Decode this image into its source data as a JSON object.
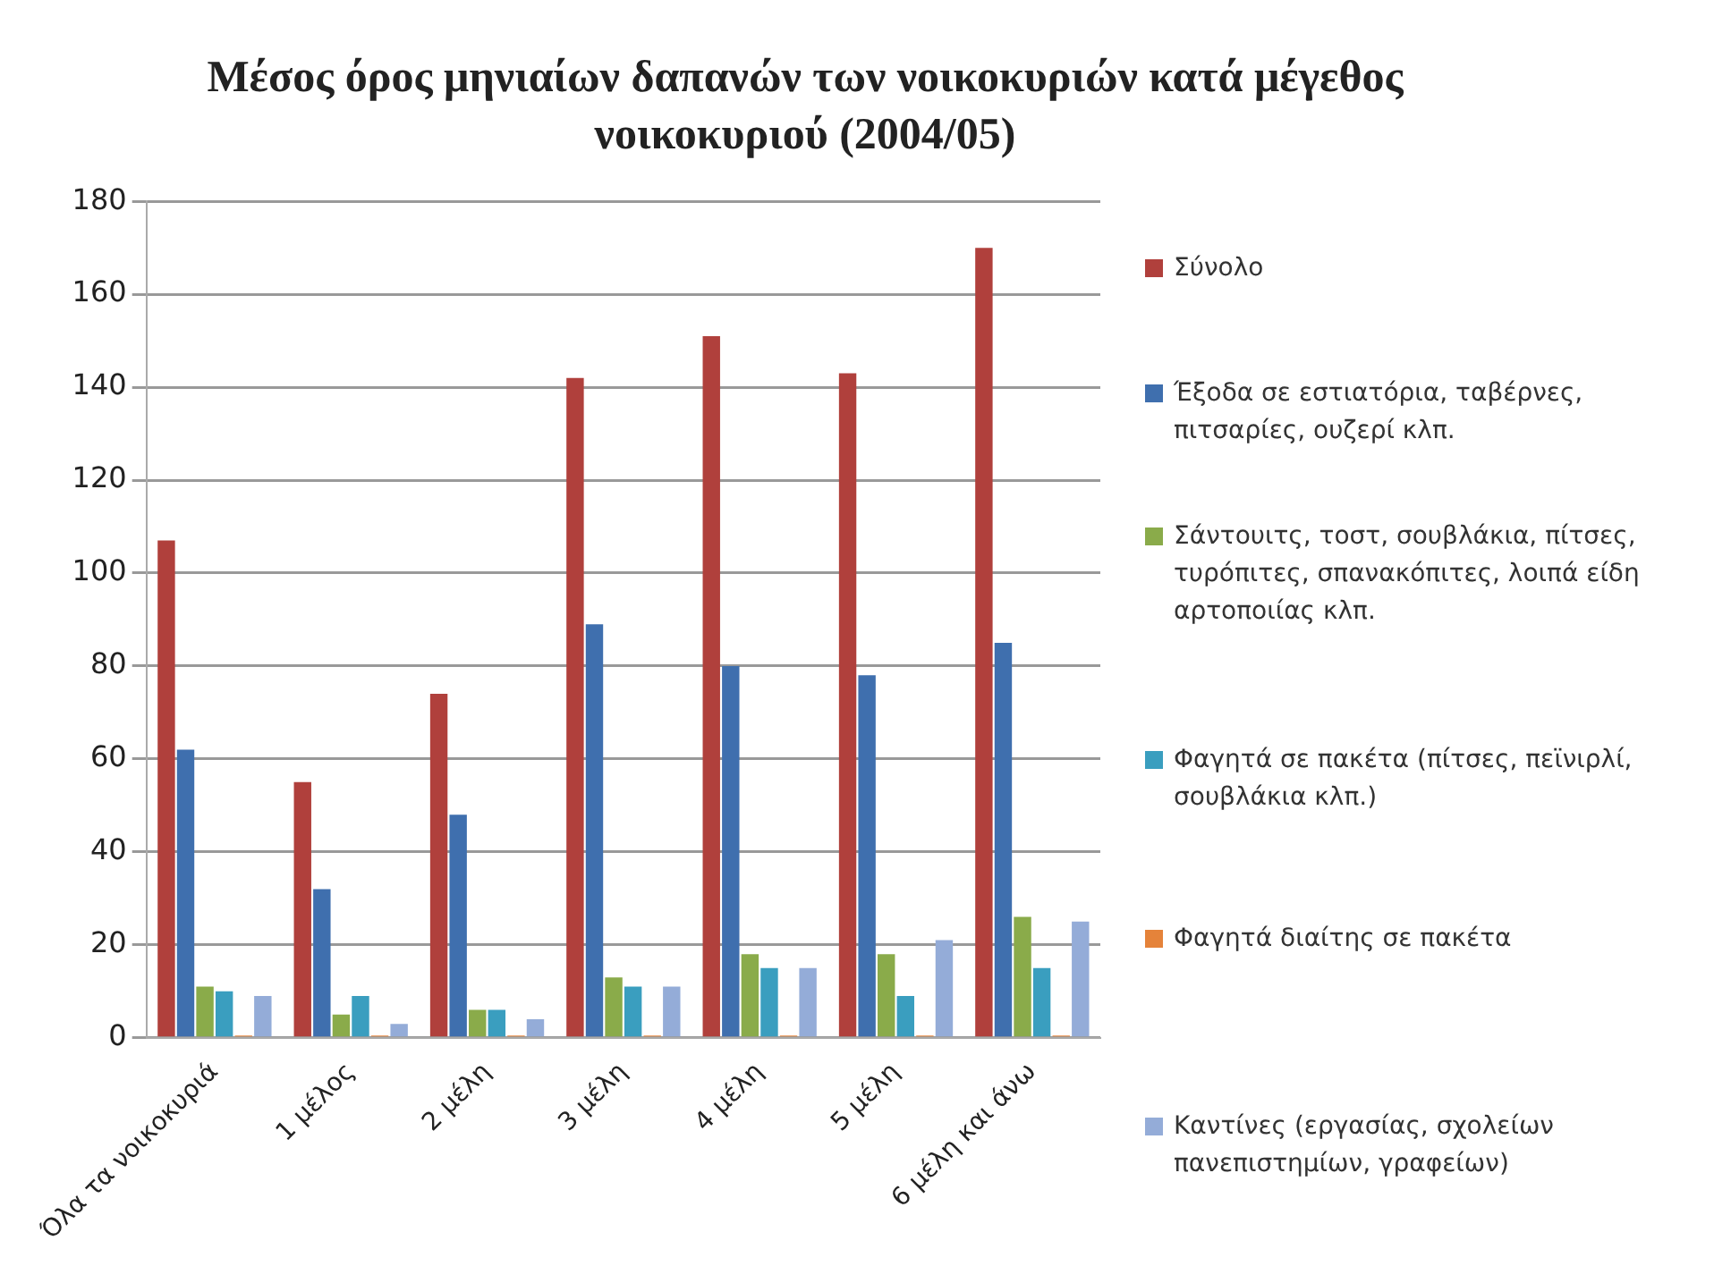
{
  "chart_data": {
    "type": "bar",
    "title": "Μέσος όρος μηνιαίων δαπανών των νοικοκυριών κατά μέγεθος νοικοκυριού (2004/05)",
    "categories": [
      "Όλα τα νοικοκυριά",
      "1 μέλος",
      "2 μέλη",
      "3 μέλη",
      "4 μέλη",
      "5 μέλη",
      "6 μέλη και άνω"
    ],
    "series": [
      {
        "name": "Σύνολο",
        "color": "#b0403c",
        "values": [
          107,
          55,
          74,
          142,
          151,
          143,
          170
        ]
      },
      {
        "name": "Έξοδα σε εστιατόρια, ταβέρνες, πιτσαρίες, ουζερί κλπ.",
        "color": "#3f6fae",
        "values": [
          62,
          32,
          48,
          89,
          80,
          78,
          85
        ]
      },
      {
        "name": "Σάντουιτς, τοστ, σουβλάκια, πίτσες, τυρόπιτες, σπανακόπιτες, λοιπά είδη αρτοποιίας κλπ.",
        "color": "#8aab4a",
        "values": [
          11,
          5,
          6,
          13,
          18,
          18,
          26
        ]
      },
      {
        "name": "Φαγητά σε πακέτα (πίτσες, πεϊνιρλί, σουβλάκια κλπ.)",
        "color": "#3a9ebf",
        "values": [
          10,
          9,
          6,
          11,
          15,
          9,
          15
        ]
      },
      {
        "name": "Φαγητά διαίτης σε πακέτα",
        "color": "#e5833a",
        "values": [
          0.5,
          0.5,
          0.5,
          0.5,
          0.5,
          0.5,
          0.5
        ]
      },
      {
        "name": "Καντίνες (εργασίας, σχολείων πανεπιστημίων, γραφείων)",
        "color": "#94acd8",
        "values": [
          9,
          3,
          4,
          11,
          15,
          21,
          25
        ]
      }
    ],
    "ylim": [
      0,
      180
    ],
    "yticks": [
      0,
      20,
      40,
      60,
      80,
      100,
      120,
      140,
      160,
      180
    ],
    "grid": "y",
    "legend": "right"
  }
}
